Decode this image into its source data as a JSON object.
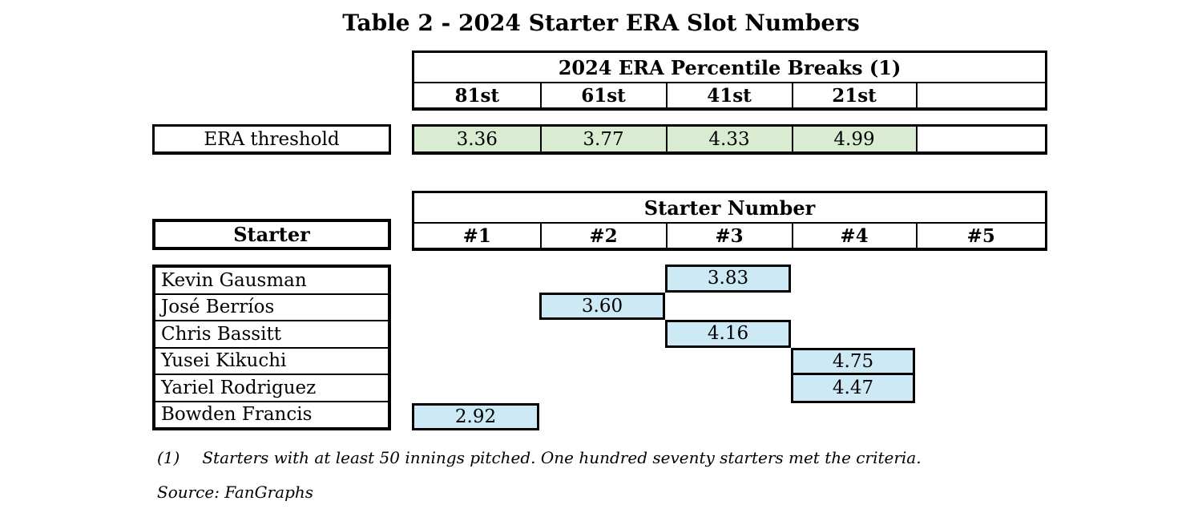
{
  "title": "Table 2 - 2024 Starter ERA Slot Numbers",
  "colors": {
    "threshold_cell_green": "#d9ecd2",
    "era_cell_blue": "#cde9f6",
    "border_black": "#000000"
  },
  "percentile_table": {
    "header": "2024 ERA Percentile Breaks (1)",
    "columns": [
      "81st",
      "61st",
      "41st",
      "21st",
      ""
    ],
    "row_label": "ERA threshold",
    "values": [
      "3.36",
      "3.77",
      "4.33",
      "4.99",
      ""
    ]
  },
  "starter_table": {
    "header": "Starter Number",
    "columns": [
      "#1",
      "#2",
      "#3",
      "#4",
      "#5"
    ],
    "row_label": "Starter",
    "rows": [
      {
        "name": "Kevin Gausman",
        "slot": 3,
        "era": "3.83"
      },
      {
        "name": "José Berríos",
        "slot": 2,
        "era": "3.60"
      },
      {
        "name": "Chris Bassitt",
        "slot": 3,
        "era": "4.16"
      },
      {
        "name": "Yusei Kikuchi",
        "slot": 4,
        "era": "4.75"
      },
      {
        "name": "Yariel Rodriguez",
        "slot": 4,
        "era": "4.47"
      },
      {
        "name": "Bowden Francis",
        "slot": 1,
        "era": "2.92"
      }
    ]
  },
  "footnote": {
    "marker": "(1)",
    "text": "Starters with at least 50 innings pitched. One hundred seventy starters met the criteria."
  },
  "source": "Source: FanGraphs",
  "chart_data": {
    "type": "table",
    "title": "Table 2 - 2024 Starter ERA Slot Numbers",
    "tables": [
      {
        "title": "2024 ERA Percentile Breaks (1)",
        "columns": [
          "81st",
          "61st",
          "41st",
          "21st"
        ],
        "rows": [
          {
            "label": "ERA threshold",
            "values": [
              3.36,
              3.77,
              4.33,
              4.99
            ]
          }
        ]
      },
      {
        "title": "Starter Number",
        "columns": [
          "#1",
          "#2",
          "#3",
          "#4",
          "#5"
        ],
        "rows": [
          {
            "label": "Kevin Gausman",
            "slot": "#3",
            "value": 3.83
          },
          {
            "label": "José Berríos",
            "slot": "#2",
            "value": 3.6
          },
          {
            "label": "Chris Bassitt",
            "slot": "#3",
            "value": 4.16
          },
          {
            "label": "Yusei Kikuchi",
            "slot": "#4",
            "value": 4.75
          },
          {
            "label": "Yariel Rodriguez",
            "slot": "#4",
            "value": 4.47
          },
          {
            "label": "Bowden Francis",
            "slot": "#1",
            "value": 2.92
          }
        ]
      }
    ],
    "footnote": "(1) Starters with at least 50 innings pitched. One hundred seventy starters met the criteria.",
    "source": "Source: FanGraphs"
  }
}
